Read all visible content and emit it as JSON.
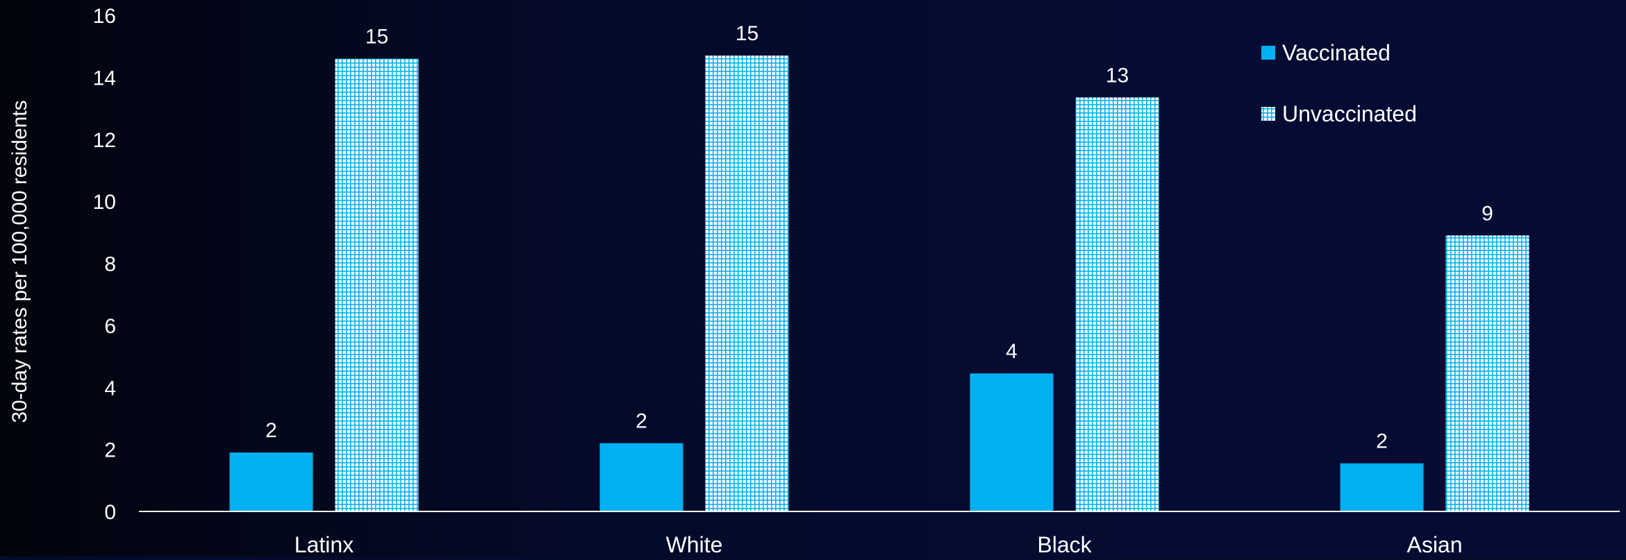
{
  "chart_data": {
    "type": "bar",
    "title": "",
    "xlabel": "",
    "ylabel": "30-day rates per 100,000 residents",
    "categories": [
      "Latinx",
      "White",
      "Black",
      "Asian"
    ],
    "series": [
      {
        "name": "Vaccinated",
        "values": [
          1.9,
          2.2,
          4.45,
          1.55
        ],
        "labels": [
          "2",
          "2",
          "4",
          "2"
        ],
        "color": "#00b0f0",
        "pattern": "solid"
      },
      {
        "name": "Unvaccinated",
        "values": [
          14.6,
          14.7,
          13.35,
          8.9
        ],
        "labels": [
          "15",
          "15",
          "13",
          "9"
        ],
        "color": "#00b0f0",
        "pattern": "grid"
      }
    ],
    "ylim": [
      0,
      16
    ],
    "yticks": [
      0,
      2,
      4,
      6,
      8,
      10,
      12,
      14,
      16
    ],
    "grid": false,
    "legend_position": "top-right",
    "text_color": "#ffffff",
    "background_color": "#040a29"
  }
}
